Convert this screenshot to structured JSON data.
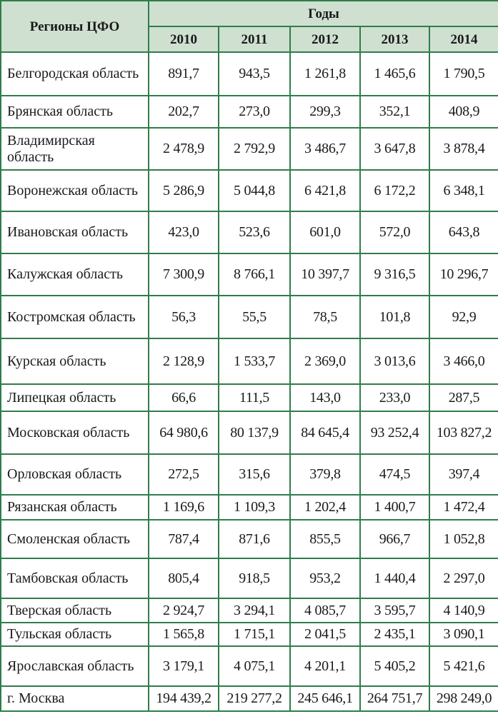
{
  "header": {
    "region_col": "Регионы ЦФО",
    "years_group": "Годы",
    "years": [
      "2010",
      "2011",
      "2012",
      "2013",
      "2014"
    ]
  },
  "rows": [
    {
      "region": "Белгородская область",
      "values": [
        "891,7",
        "943,5",
        "1 261,8",
        "1 465,6",
        "1 790,5"
      ]
    },
    {
      "region": "Брянская область",
      "values": [
        "202,7",
        "273,0",
        "299,3",
        "352,1",
        "408,9"
      ]
    },
    {
      "region": "Владимирская область",
      "values": [
        "2 478,9",
        "2 792,9",
        "3 486,7",
        "3 647,8",
        "3 878,4"
      ]
    },
    {
      "region": "Воронежская область",
      "values": [
        "5 286,9",
        "5 044,8",
        "6 421,8",
        "6 172,2",
        "6 348,1"
      ]
    },
    {
      "region": "Ивановская область",
      "values": [
        "423,0",
        "523,6",
        "601,0",
        "572,0",
        "643,8"
      ]
    },
    {
      "region": "Калужская область",
      "values": [
        "7 300,9",
        "8 766,1",
        "10 397,7",
        "9 316,5",
        "10 296,7"
      ]
    },
    {
      "region": "Костромская область",
      "values": [
        "56,3",
        "55,5",
        "78,5",
        "101,8",
        "92,9"
      ]
    },
    {
      "region": "Курская область",
      "values": [
        "2 128,9",
        "1 533,7",
        "2 369,0",
        "3 013,6",
        "3 466,0"
      ]
    },
    {
      "region": "Липецкая область",
      "values": [
        "66,6",
        "111,5",
        "143,0",
        "233,0",
        "287,5"
      ]
    },
    {
      "region": "Московская область",
      "values": [
        "64 980,6",
        "80 137,9",
        "84 645,4",
        "93 252,4",
        "103 827,2"
      ]
    },
    {
      "region": "Орловская область",
      "values": [
        "272,5",
        "315,6",
        "379,8",
        "474,5",
        "397,4"
      ]
    },
    {
      "region": "Рязанская область",
      "values": [
        "1 169,6",
        "1 109,3",
        "1 202,4",
        "1 400,7",
        "1 472,4"
      ]
    },
    {
      "region": "Смоленская область",
      "values": [
        "787,4",
        "871,6",
        "855,5",
        "966,7",
        "1 052,8"
      ]
    },
    {
      "region": "Тамбовская область",
      "values": [
        "805,4",
        "918,5",
        "953,2",
        "1 440,4",
        "2 297,0"
      ]
    },
    {
      "region": "Тверская область",
      "values": [
        "2 924,7",
        "3 294,1",
        "4 085,7",
        "3 595,7",
        "4 140,9"
      ]
    },
    {
      "region": "Тульская область",
      "values": [
        "1 565,8",
        "1 715,1",
        "2 041,5",
        "2 435,1",
        "3 090,1"
      ]
    },
    {
      "region": "Ярославская область",
      "values": [
        "3 179,1",
        "4 075,1",
        "4 201,1",
        "5 405,2",
        "5 421,6"
      ]
    },
    {
      "region": "г. Москва",
      "values": [
        "194 439,2",
        "219 277,2",
        "245 646,1",
        "264 751,7",
        "298 249,0"
      ]
    }
  ]
}
